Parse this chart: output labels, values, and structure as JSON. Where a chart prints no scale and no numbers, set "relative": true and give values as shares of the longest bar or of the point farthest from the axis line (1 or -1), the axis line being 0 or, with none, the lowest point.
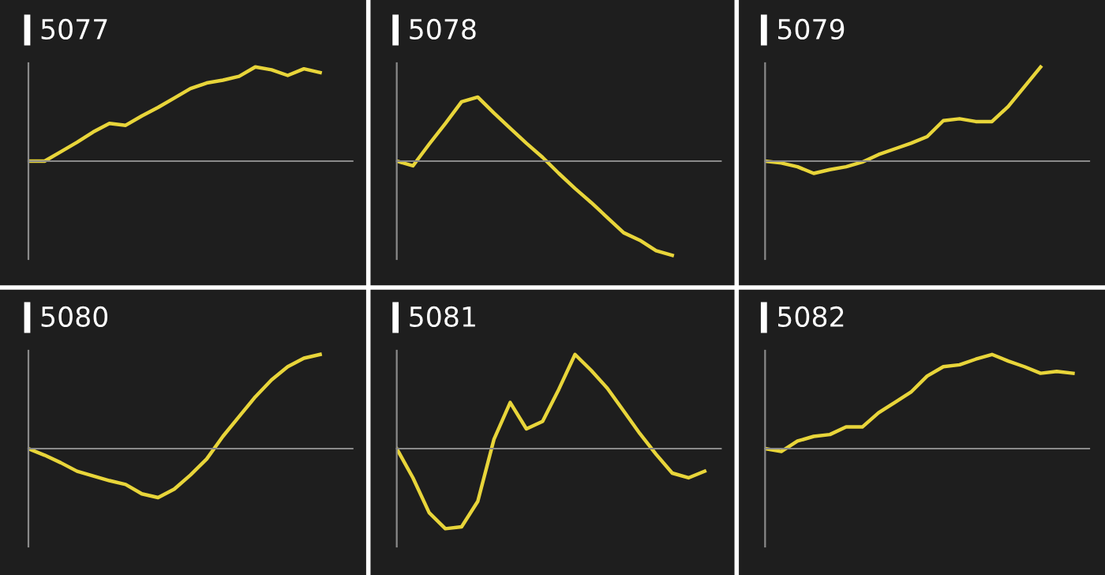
{
  "chart_data": [
    {
      "type": "line",
      "title": "5077",
      "relative": true,
      "color": "#e8d53a",
      "categories": [
        null,
        null,
        null,
        null,
        null,
        null,
        null,
        null,
        null,
        null,
        null,
        null,
        null,
        null,
        null,
        null,
        null,
        null,
        null,
        null,
        null
      ],
      "values": [
        0,
        0,
        0.1,
        0.2,
        0.31,
        0.4,
        0.38,
        0.48,
        0.57,
        0.67,
        0.77,
        0.83,
        0.86,
        0.9,
        1.0,
        0.97,
        0.91,
        0.98,
        0.94,
        null,
        null
      ]
    },
    {
      "type": "line",
      "title": "5078",
      "relative": true,
      "color": "#e8d53a",
      "categories": [
        null,
        null,
        null,
        null,
        null,
        null,
        null,
        null,
        null,
        null,
        null,
        null,
        null,
        null,
        null,
        null,
        null,
        null,
        null,
        null,
        null
      ],
      "values": [
        0,
        -0.05,
        0.18,
        0.4,
        0.63,
        0.68,
        0.51,
        0.35,
        0.19,
        0.04,
        -0.13,
        -0.29,
        -0.44,
        -0.6,
        -0.76,
        -0.84,
        -0.95,
        -1.0,
        null,
        null,
        null
      ]
    },
    {
      "type": "line",
      "title": "5079",
      "relative": true,
      "color": "#e8d53a",
      "categories": [
        null,
        null,
        null,
        null,
        null,
        null,
        null,
        null,
        null,
        null,
        null,
        null,
        null,
        null,
        null,
        null,
        null,
        null,
        null,
        null,
        null
      ],
      "values": [
        0,
        -0.02,
        -0.06,
        -0.13,
        -0.09,
        -0.06,
        -0.01,
        0.07,
        0.13,
        0.19,
        0.26,
        0.43,
        0.45,
        0.42,
        0.42,
        0.58,
        0.79,
        1.0,
        null,
        null,
        null
      ]
    },
    {
      "type": "line",
      "title": "5080",
      "relative": true,
      "color": "#e8d53a",
      "categories": [
        null,
        null,
        null,
        null,
        null,
        null,
        null,
        null,
        null,
        null,
        null,
        null,
        null,
        null,
        null,
        null,
        null,
        null,
        null,
        null,
        null
      ],
      "values": [
        0,
        -0.07,
        -0.15,
        -0.24,
        -0.29,
        -0.34,
        -0.38,
        -0.48,
        -0.52,
        -0.43,
        -0.28,
        -0.11,
        0.13,
        0.34,
        0.55,
        0.73,
        0.87,
        0.96,
        1.0,
        null,
        null
      ]
    },
    {
      "type": "line",
      "title": "5081",
      "relative": true,
      "color": "#e8d53a",
      "categories": [
        null,
        null,
        null,
        null,
        null,
        null,
        null,
        null,
        null,
        null,
        null,
        null,
        null,
        null,
        null,
        null,
        null,
        null,
        null,
        null,
        null
      ],
      "values": [
        0,
        -0.31,
        -0.68,
        -0.85,
        -0.83,
        -0.56,
        0.1,
        0.49,
        0.21,
        0.29,
        0.63,
        1.0,
        0.83,
        0.64,
        0.4,
        0.16,
        -0.06,
        -0.26,
        -0.31,
        -0.24,
        null
      ]
    },
    {
      "type": "line",
      "title": "5082",
      "relative": true,
      "color": "#e8d53a",
      "categories": [
        null,
        null,
        null,
        null,
        null,
        null,
        null,
        null,
        null,
        null,
        null,
        null,
        null,
        null,
        null,
        null,
        null,
        null,
        null,
        null,
        null
      ],
      "values": [
        0,
        -0.03,
        0.08,
        0.13,
        0.15,
        0.23,
        0.23,
        0.38,
        0.49,
        0.6,
        0.77,
        0.87,
        0.89,
        0.95,
        1.0,
        0.93,
        0.87,
        0.8,
        0.82,
        0.8,
        null
      ]
    }
  ]
}
